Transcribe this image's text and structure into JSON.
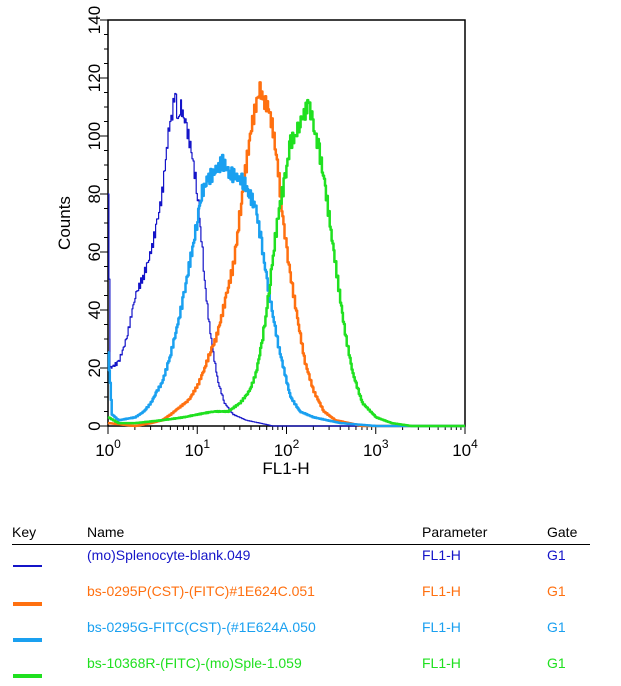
{
  "chart_data": {
    "type": "line",
    "title": "",
    "xlabel": "FL1-H",
    "ylabel": "Counts",
    "xscale": "log",
    "xlim": [
      1,
      10000
    ],
    "ylim": [
      0,
      140
    ],
    "xticks": [
      {
        "base": "10",
        "exp": "0"
      },
      {
        "base": "10",
        "exp": "1"
      },
      {
        "base": "10",
        "exp": "2"
      },
      {
        "base": "10",
        "exp": "3"
      },
      {
        "base": "10",
        "exp": "4"
      }
    ],
    "yticks": [
      "0",
      "20",
      "40",
      "60",
      "80",
      "100",
      "120",
      "140"
    ],
    "series": [
      {
        "name": "(mo)Splenocyte-blank.049",
        "color": "#1414c8",
        "width": 1.2,
        "points": [
          [
            1,
            80
          ],
          [
            1.05,
            20
          ],
          [
            1.3,
            22
          ],
          [
            1.6,
            30
          ],
          [
            2,
            45
          ],
          [
            2.5,
            52
          ],
          [
            3,
            60
          ],
          [
            3.5,
            70
          ],
          [
            4,
            80
          ],
          [
            4.5,
            95
          ],
          [
            4.8,
            103
          ],
          [
            5.2,
            108
          ],
          [
            5.6,
            116
          ],
          [
            6,
            105
          ],
          [
            6.5,
            110
          ],
          [
            7.5,
            103
          ],
          [
            8.5,
            95
          ],
          [
            10,
            80
          ],
          [
            11,
            65
          ],
          [
            12,
            50
          ],
          [
            13.5,
            35
          ],
          [
            15,
            25
          ],
          [
            17,
            15
          ],
          [
            20,
            8
          ],
          [
            25,
            4
          ],
          [
            35,
            2
          ],
          [
            50,
            1
          ],
          [
            70,
            0
          ],
          [
            10000,
            0
          ]
        ]
      },
      {
        "name": "bs-0295P(CST)-(FITC)#1E624C.051",
        "color": "#ff7010",
        "width": 2.5,
        "points": [
          [
            1,
            1
          ],
          [
            2,
            0
          ],
          [
            3,
            1
          ],
          [
            4,
            2
          ],
          [
            5,
            4
          ],
          [
            6,
            6
          ],
          [
            8,
            9
          ],
          [
            10,
            14
          ],
          [
            12,
            20
          ],
          [
            14,
            26
          ],
          [
            16,
            30
          ],
          [
            18,
            36
          ],
          [
            21,
            45
          ],
          [
            25,
            55
          ],
          [
            28,
            66
          ],
          [
            31,
            78
          ],
          [
            35,
            90
          ],
          [
            40,
            103
          ],
          [
            46,
            112
          ],
          [
            50,
            116
          ],
          [
            55,
            112
          ],
          [
            62,
            110
          ],
          [
            70,
            102
          ],
          [
            80,
            88
          ],
          [
            90,
            72
          ],
          [
            100,
            60
          ],
          [
            115,
            48
          ],
          [
            135,
            35
          ],
          [
            160,
            22
          ],
          [
            200,
            12
          ],
          [
            260,
            5
          ],
          [
            350,
            2
          ],
          [
            500,
            1
          ],
          [
            700,
            0
          ],
          [
            10000,
            0
          ]
        ]
      },
      {
        "name": "bs-0295G-FITC(CST)-(#1E624A.050",
        "color": "#1aa0f0",
        "width": 2.5,
        "points": [
          [
            1,
            25
          ],
          [
            1.1,
            4
          ],
          [
            1.3,
            2
          ],
          [
            2,
            3
          ],
          [
            2.5,
            5
          ],
          [
            3,
            8
          ],
          [
            3.5,
            12
          ],
          [
            4,
            15
          ],
          [
            4.5,
            20
          ],
          [
            5,
            25
          ],
          [
            6,
            35
          ],
          [
            7,
            45
          ],
          [
            8,
            55
          ],
          [
            9,
            63
          ],
          [
            10,
            72
          ],
          [
            11,
            80
          ],
          [
            13,
            85
          ],
          [
            16,
            88
          ],
          [
            19,
            91
          ],
          [
            23,
            87
          ],
          [
            28,
            86
          ],
          [
            33,
            84
          ],
          [
            38,
            80
          ],
          [
            45,
            75
          ],
          [
            52,
            63
          ],
          [
            60,
            50
          ],
          [
            70,
            38
          ],
          [
            80,
            28
          ],
          [
            95,
            18
          ],
          [
            110,
            10
          ],
          [
            140,
            5
          ],
          [
            200,
            3
          ],
          [
            400,
            1
          ],
          [
            1000,
            0
          ],
          [
            10000,
            0
          ]
        ]
      },
      {
        "name": "bs-10368R-(FITC)-(mo)Sple-1.059",
        "color": "#20e020",
        "width": 2.5,
        "points": [
          [
            1,
            3
          ],
          [
            1.3,
            1
          ],
          [
            2,
            1
          ],
          [
            4,
            2
          ],
          [
            7,
            3
          ],
          [
            10,
            4
          ],
          [
            15,
            5
          ],
          [
            22,
            5
          ],
          [
            30,
            8
          ],
          [
            38,
            12
          ],
          [
            45,
            18
          ],
          [
            52,
            28
          ],
          [
            58,
            38
          ],
          [
            65,
            50
          ],
          [
            72,
            62
          ],
          [
            82,
            75
          ],
          [
            95,
            85
          ],
          [
            110,
            98
          ],
          [
            125,
            100
          ],
          [
            140,
            105
          ],
          [
            160,
            108
          ],
          [
            175,
            112
          ],
          [
            195,
            104
          ],
          [
            230,
            95
          ],
          [
            270,
            82
          ],
          [
            320,
            65
          ],
          [
            380,
            48
          ],
          [
            450,
            32
          ],
          [
            550,
            18
          ],
          [
            700,
            8
          ],
          [
            1000,
            3
          ],
          [
            1500,
            1
          ],
          [
            2500,
            0
          ],
          [
            10000,
            0
          ]
        ]
      }
    ]
  },
  "legend": {
    "headers": {
      "key": "Key",
      "name": "Name",
      "parameter": "Parameter",
      "gate": "Gate"
    },
    "rows": [
      {
        "name": "(mo)Splenocyte-blank.049",
        "parameter": "FL1-H",
        "gate": "G1",
        "color": "#1414c8"
      },
      {
        "name": "bs-0295P(CST)-(FITC)#1E624C.051",
        "parameter": "FL1-H",
        "gate": "G1",
        "color": "#ff7010"
      },
      {
        "name": "bs-0295G-FITC(CST)-(#1E624A.050",
        "parameter": "FL1-H",
        "gate": "G1",
        "color": "#1aa0f0"
      },
      {
        "name": "bs-10368R-(FITC)-(mo)Sple-1.059",
        "parameter": "FL1-H",
        "gate": "G1",
        "color": "#20e020"
      }
    ]
  }
}
